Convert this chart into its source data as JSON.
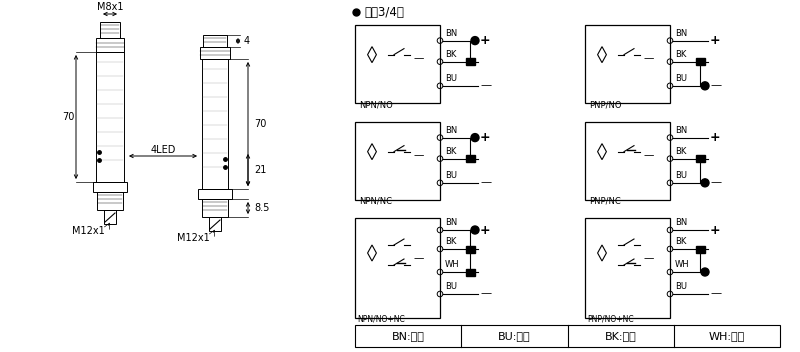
{
  "bg_color": "#ffffff",
  "header": "● 直涁3/4线",
  "legend": [
    "BN:棕色",
    "BU:兰色",
    "BK:黑色",
    "WH:白色"
  ],
  "dim_m8x1": "M8x1",
  "dim_m12x1": "M12x1",
  "dim_70": "70",
  "dim_4": "4",
  "dim_21": "21",
  "dim_85": "8.5",
  "dim_4led": "4LED",
  "labels_left": [
    "NPN/NO",
    "NPN/NC",
    "NPN/NO+NC"
  ],
  "labels_right": [
    "PNP/NO",
    "PNP/NC",
    "PNP/NO+NC"
  ]
}
